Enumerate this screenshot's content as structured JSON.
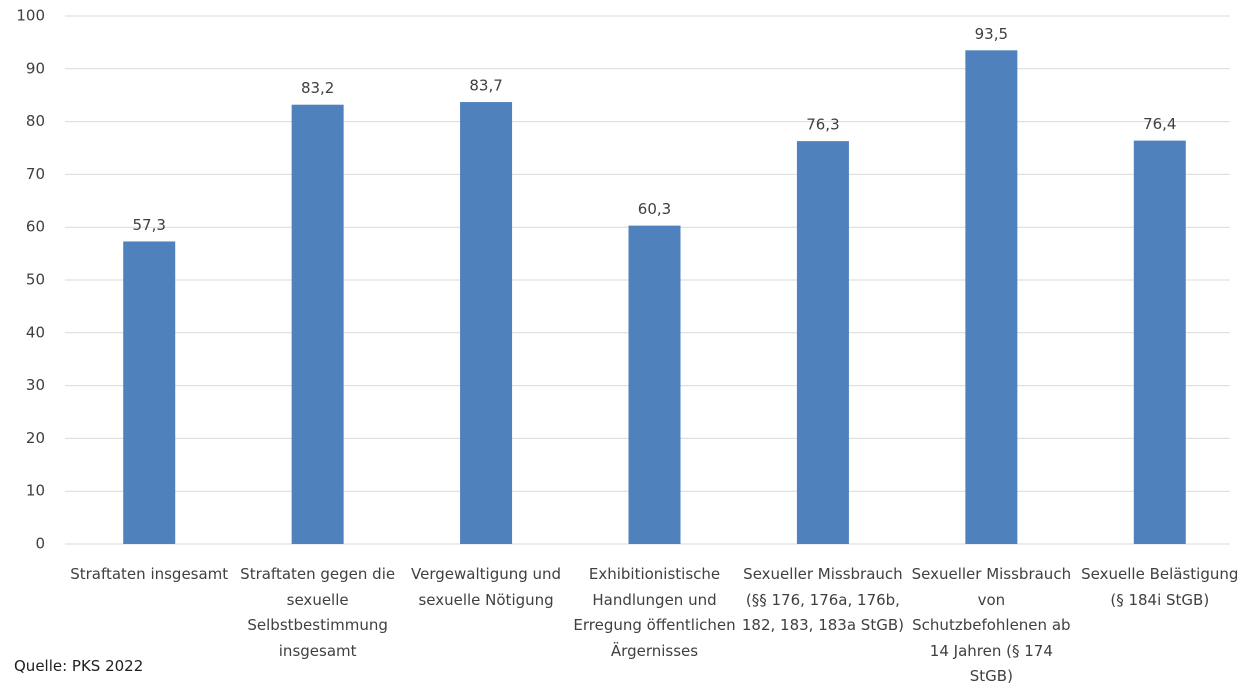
{
  "chart_data": {
    "type": "bar",
    "categories": [
      "Straftaten insgesamt",
      "Straftaten gegen die sexuelle Selbstbestimmung insgesamt",
      "Vergewaltigung und sexuelle Nötigung",
      "Exhibitionistische Handlungen und Erregung öffentlichen Ärgernisses",
      "Sexueller Missbrauch (§§ 176, 176a, 176b, 182, 183, 183a StGB)",
      "Sexueller Missbrauch von Schutzbefohlenen ab 14 Jahren (§ 174 StGB)",
      "Sexuelle Belästigung (§ 184i StGB)"
    ],
    "values": [
      57.3,
      83.2,
      83.7,
      60.3,
      76.3,
      93.5,
      76.4
    ],
    "value_labels": [
      "57,3",
      "83,2",
      "83,7",
      "60,3",
      "76,3",
      "93,5",
      "76,4"
    ],
    "color": "#4f81bd",
    "ylim": [
      0,
      100
    ],
    "yticks": [
      0,
      10,
      20,
      30,
      40,
      50,
      60,
      70,
      80,
      90,
      100
    ],
    "grid": true,
    "source": "Quelle: PKS 2022"
  }
}
